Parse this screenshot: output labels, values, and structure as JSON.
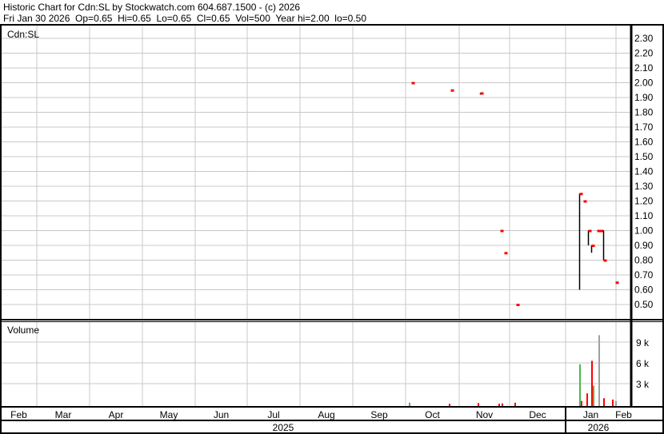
{
  "header": {
    "title": "Historic Chart for Cdn:SL by Stockwatch.com 604.687.1500 - (c) 2026",
    "summary": "Fri Jan 30 2026  Op=0.65  Hi=0.65  Lo=0.65  Cl=0.65  Vol=500  Year hi=2.00  lo=0.50"
  },
  "chart_data": [
    {
      "type": "ohlc",
      "title": "Cdn:SL",
      "y_ticks": [
        "2.30",
        "2.20",
        "2.10",
        "2.00",
        "1.90",
        "1.80",
        "1.70",
        "1.60",
        "1.50",
        "1.40",
        "1.30",
        "1.20",
        "1.10",
        "1.00",
        "0.90",
        "0.80",
        "0.70",
        "0.60",
        "0.50"
      ],
      "ylim": [
        0.4,
        2.4
      ],
      "grid": true,
      "bars": [
        {
          "date": "2025-10-03",
          "high": 2.0,
          "low": 2.0,
          "close": 2.0
        },
        {
          "date": "2025-10-26",
          "high": 1.95,
          "low": 1.95,
          "close": 1.95
        },
        {
          "date": "2025-11-12",
          "high": 1.93,
          "low": 1.92,
          "close": 1.93
        },
        {
          "date": "2025-11-24",
          "high": 1.0,
          "low": 1.0,
          "close": 1.0
        },
        {
          "date": "2025-11-26",
          "high": 0.85,
          "low": 0.85,
          "close": 0.85
        },
        {
          "date": "2025-12-03",
          "high": 0.5,
          "low": 0.5,
          "close": 0.5
        },
        {
          "date": "2026-01-09",
          "high": 1.25,
          "low": 0.6,
          "close": 1.25
        },
        {
          "date": "2026-01-11",
          "high": 1.2,
          "low": 1.2,
          "close": 1.2
        },
        {
          "date": "2026-01-14",
          "high": 1.0,
          "low": 0.9,
          "close": 1.0
        },
        {
          "date": "2026-01-16",
          "high": 0.9,
          "low": 0.85,
          "close": 0.9
        },
        {
          "date": "2026-01-19",
          "high": 1.0,
          "low": 1.0,
          "close": 1.0
        },
        {
          "date": "2026-01-21",
          "high": 1.0,
          "low": 1.0,
          "close": 1.0
        },
        {
          "date": "2026-01-23",
          "high": 1.0,
          "low": 0.8,
          "close": 0.8
        },
        {
          "date": "2026-01-30",
          "high": 0.65,
          "low": 0.65,
          "close": 0.65
        }
      ]
    },
    {
      "type": "bar",
      "title": "Volume",
      "y_ticks": [
        "9 k",
        "6 k",
        "3 k"
      ],
      "ylim": [
        0,
        11000
      ],
      "colors": {
        "up": "#4cb84c",
        "down": "#ff0000",
        "unchanged": "#a0a0a0"
      },
      "bars": [
        {
          "date": "2025-10-02",
          "volume": 250,
          "dir": "up"
        },
        {
          "date": "2025-10-25",
          "volume": 100,
          "dir": "down"
        },
        {
          "date": "2025-11-11",
          "volume": 200,
          "dir": "down"
        },
        {
          "date": "2025-11-23",
          "volume": 100,
          "dir": "down"
        },
        {
          "date": "2025-11-25",
          "volume": 150,
          "dir": "down"
        },
        {
          "date": "2025-12-02",
          "volume": 250,
          "dir": "down"
        },
        {
          "date": "2026-01-09",
          "volume": 5800,
          "dir": "up"
        },
        {
          "date": "2026-01-10",
          "volume": 500,
          "dir": "down"
        },
        {
          "date": "2026-01-13",
          "volume": 1600,
          "dir": "down"
        },
        {
          "date": "2026-01-16",
          "volume": 6300,
          "dir": "down"
        },
        {
          "date": "2026-01-17",
          "volume": 2700,
          "dir": "up"
        },
        {
          "date": "2026-01-20",
          "volume": 10000,
          "dir": "unchanged"
        },
        {
          "date": "2026-01-23",
          "volume": 900,
          "dir": "down"
        },
        {
          "date": "2026-01-28",
          "volume": 700,
          "dir": "down"
        },
        {
          "date": "2026-01-30",
          "volume": 500,
          "dir": "unchanged"
        }
      ]
    }
  ],
  "x_axis": {
    "months": [
      "Feb",
      "Mar",
      "Apr",
      "May",
      "Jun",
      "Jul",
      "Aug",
      "Sep",
      "Oct",
      "Nov",
      "Dec",
      "Jan",
      "Feb"
    ],
    "years": [
      "2025",
      "2026"
    ]
  },
  "colors": {
    "price_tick": "#ff0000",
    "price_bar": "#000000",
    "grid": "#c8c8c8"
  }
}
